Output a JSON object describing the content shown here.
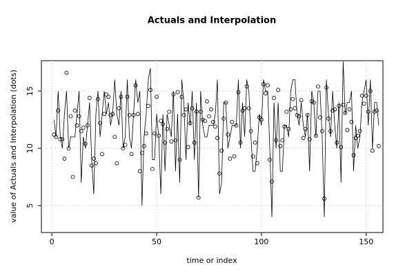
{
  "chart_data": {
    "type": "line",
    "title": "Actuals and Interpolation",
    "x_label": "time or index",
    "y_label": "value of Actuals and Interpolation (dots)",
    "x": [
      1,
      2,
      3,
      4,
      5,
      6,
      7,
      8,
      9,
      10,
      11,
      12,
      13,
      14,
      15,
      16,
      17,
      18,
      19,
      20,
      21,
      22,
      23,
      24,
      25,
      26,
      27,
      28,
      29,
      30,
      31,
      32,
      33,
      34,
      35,
      36,
      37,
      38,
      39,
      40,
      41,
      42,
      43,
      44,
      45,
      46,
      47,
      48,
      49,
      50,
      51,
      52,
      53,
      54,
      55,
      56,
      57,
      58,
      59,
      60,
      61,
      62,
      63,
      64,
      65,
      66,
      67,
      68,
      69,
      70,
      71,
      72,
      73,
      74,
      75,
      76,
      77,
      78,
      79,
      80,
      81,
      82,
      83,
      84,
      85,
      86,
      87,
      88,
      89,
      90,
      91,
      92,
      93,
      94,
      95,
      96,
      97,
      98,
      99,
      100,
      101,
      102,
      103,
      104,
      105,
      106,
      107,
      108,
      109,
      110,
      111,
      112,
      113,
      114,
      115,
      116,
      117,
      118,
      119,
      120,
      121,
      122,
      123,
      124,
      125,
      126,
      127,
      128,
      129,
      130,
      131,
      132,
      133,
      134,
      135,
      136,
      137,
      138,
      139,
      140,
      141,
      142,
      143,
      144,
      145,
      146,
      147,
      148,
      149,
      150,
      151,
      152,
      153,
      154,
      155,
      156
    ],
    "series": [
      {
        "color": "#000000",
        "style": "dots",
        "values": [
          11.2,
          11.0,
          13.3,
          10.8,
          10.8,
          9.1,
          16.6,
          10.0,
          12.8,
          7.5,
          13.3,
          12.0,
          12.8,
          11.5,
          11.8,
          10.4,
          12.0,
          14.4,
          8.5,
          9.1,
          8.7,
          14.3,
          12.2,
          9.5,
          13.0,
          14.7,
          14.5,
          12.9,
          13.0,
          11.0,
          8.7,
          13.5,
          14.5,
          10.0,
          10.3,
          14.5,
          12.9,
          9.5,
          12.9,
          15.5,
          13.0,
          8.0,
          9.6,
          10.2,
          11.3,
          13.7,
          15.1,
          8.2,
          11.3,
          14.5,
          11.1,
          12.4,
          12.1,
          10.5,
          11.7,
          13.2,
          10.6,
          14.7,
          10.7,
          14.9,
          9.0,
          14.5,
          12.9,
          13.4,
          10.1,
          12.2,
          13.5,
          10.5,
          13.2,
          5.7,
          13.2,
          12.5,
          12.4,
          14.1,
          12.8,
          13.4,
          12.3,
          11.9,
          10.9,
          7.8,
          9.8,
          12.6,
          14.0,
          11.2,
          9.1,
          12.3,
          9.3,
          12.0,
          14.9,
          10.5,
          13.3,
          13.5,
          15.4,
          13.5,
          11.5,
          9.3,
          10.5,
          8.7,
          12.7,
          12.5,
          15.6,
          14.8,
          15.5,
          9.0,
          7.1,
          14.4,
          10.7,
          15.1,
          10.2,
          10.7,
          11.9,
          13.2,
          11.7,
          13.4,
          14.3,
          13.5,
          12.9,
          12.8,
          14.2,
          10.9,
          11.7,
          12.9,
          10.8,
          14.1,
          14.0,
          11.1,
          15.4,
          12.7,
          11.5,
          5.6,
          15.3,
          12.6,
          11.5,
          13.3,
          13.4,
          10.5,
          13.7,
          10.1,
          13.8,
          13.1,
          11.6,
          13.4,
          12.3,
          9.4,
          10.9,
          11.1,
          11.5,
          14.6,
          13.9,
          14.6,
          13.2,
          15.0,
          9.8,
          13.2,
          13.3,
          10.2
        ]
      },
      {
        "color": "#000000",
        "style": "line",
        "values": [
          12.5,
          11,
          15,
          11,
          10,
          13,
          15,
          10,
          11,
          11,
          11,
          13,
          15,
          7,
          11,
          10,
          12,
          14,
          9,
          6,
          13,
          15,
          11,
          13,
          15,
          13,
          14,
          12,
          13,
          16,
          13,
          12,
          15,
          10,
          11,
          16,
          11,
          10,
          13,
          16,
          14,
          15,
          5,
          11,
          13,
          16,
          17,
          9,
          9,
          13,
          11,
          6,
          13,
          8,
          13,
          12,
          11,
          15,
          8,
          13,
          7,
          16,
          14,
          9,
          14,
          12,
          15,
          9,
          14,
          5.7,
          15,
          12,
          11,
          11,
          12,
          12,
          12,
          13,
          16,
          6,
          7,
          14,
          14,
          10,
          11,
          12,
          12,
          12,
          16,
          10,
          14,
          11,
          16,
          15,
          11,
          8,
          8,
          10,
          13,
          12,
          16,
          15,
          15,
          10,
          4,
          14,
          10,
          14,
          8,
          8,
          12,
          12,
          11,
          15,
          16,
          16,
          13,
          12,
          14,
          12,
          11,
          13,
          8,
          15,
          14,
          11,
          15,
          15,
          11,
          4,
          16,
          13,
          11,
          15,
          12,
          10,
          14,
          7,
          17.6,
          13,
          14,
          14,
          15,
          8,
          12,
          10,
          11,
          14,
          15,
          16,
          12,
          16,
          10,
          14,
          14,
          12
        ]
      }
    ],
    "xlim": [
      -5,
      158
    ],
    "ylim": [
      2.65,
      17.65
    ],
    "xticks": [
      0,
      50,
      100,
      150
    ],
    "yticks": [
      5,
      10,
      15
    ],
    "grid": true
  }
}
